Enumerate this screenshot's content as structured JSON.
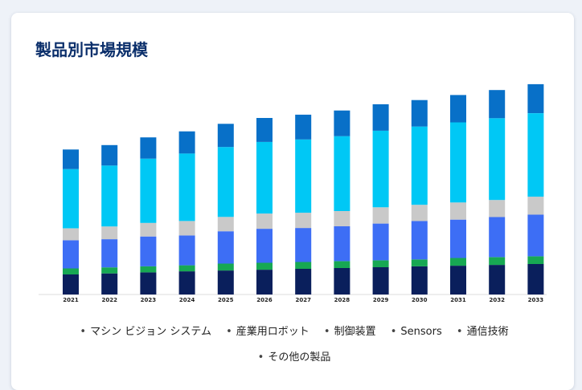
{
  "title": "製品別市場規模",
  "chart_data": {
    "type": "bar",
    "stacked": true,
    "categories": [
      "2021",
      "2022",
      "2023",
      "2024",
      "2025",
      "2026",
      "2027",
      "2028",
      "2029",
      "2030",
      "2031",
      "2032",
      "2033"
    ],
    "ylim": [
      0,
      100
    ],
    "grid": false,
    "legend_position": "bottom",
    "series": [
      {
        "name": "その他の製品",
        "color": "#0a1f5c",
        "values": [
          9.6,
          10.1,
          10.6,
          11.1,
          11.5,
          11.9,
          12.3,
          12.7,
          13.1,
          13.5,
          13.8,
          14.2,
          14.6
        ]
      },
      {
        "name": "通信技術",
        "color": "#17a853",
        "values": [
          2.9,
          2.9,
          2.9,
          2.9,
          3.3,
          3.3,
          3.3,
          3.3,
          3.3,
          3.3,
          3.7,
          3.7,
          3.7
        ]
      },
      {
        "name": "Sensors",
        "color": "#3d6ef5",
        "values": [
          13.5,
          13.5,
          14.3,
          14.3,
          15.5,
          16.3,
          16.3,
          16.7,
          17.6,
          18.4,
          18.4,
          19.2,
          20.0
        ]
      },
      {
        "name": "制御装置",
        "color": "#c9c9c9",
        "values": [
          5.7,
          6.1,
          6.5,
          6.9,
          6.9,
          7.3,
          7.3,
          7.3,
          7.8,
          7.8,
          8.2,
          8.2,
          8.6
        ]
      },
      {
        "name": "産業用ロボット",
        "color": "#00c8f5",
        "values": [
          28.4,
          29.2,
          30.8,
          32.4,
          33.5,
          34.3,
          35.1,
          35.9,
          36.7,
          37.5,
          38.4,
          39.2,
          40.0
        ]
      },
      {
        "name": "マシン ビジョン システム",
        "color": "#0870c8",
        "values": [
          9.4,
          9.8,
          10.2,
          10.6,
          11.1,
          11.5,
          11.9,
          12.3,
          12.7,
          12.7,
          13.1,
          13.5,
          13.9
        ]
      }
    ]
  },
  "legend": {
    "items": [
      "マシン ビジョン システム",
      "産業用ロボット",
      "制御装置",
      "Sensors",
      "通信技術",
      "その他の製品"
    ]
  }
}
